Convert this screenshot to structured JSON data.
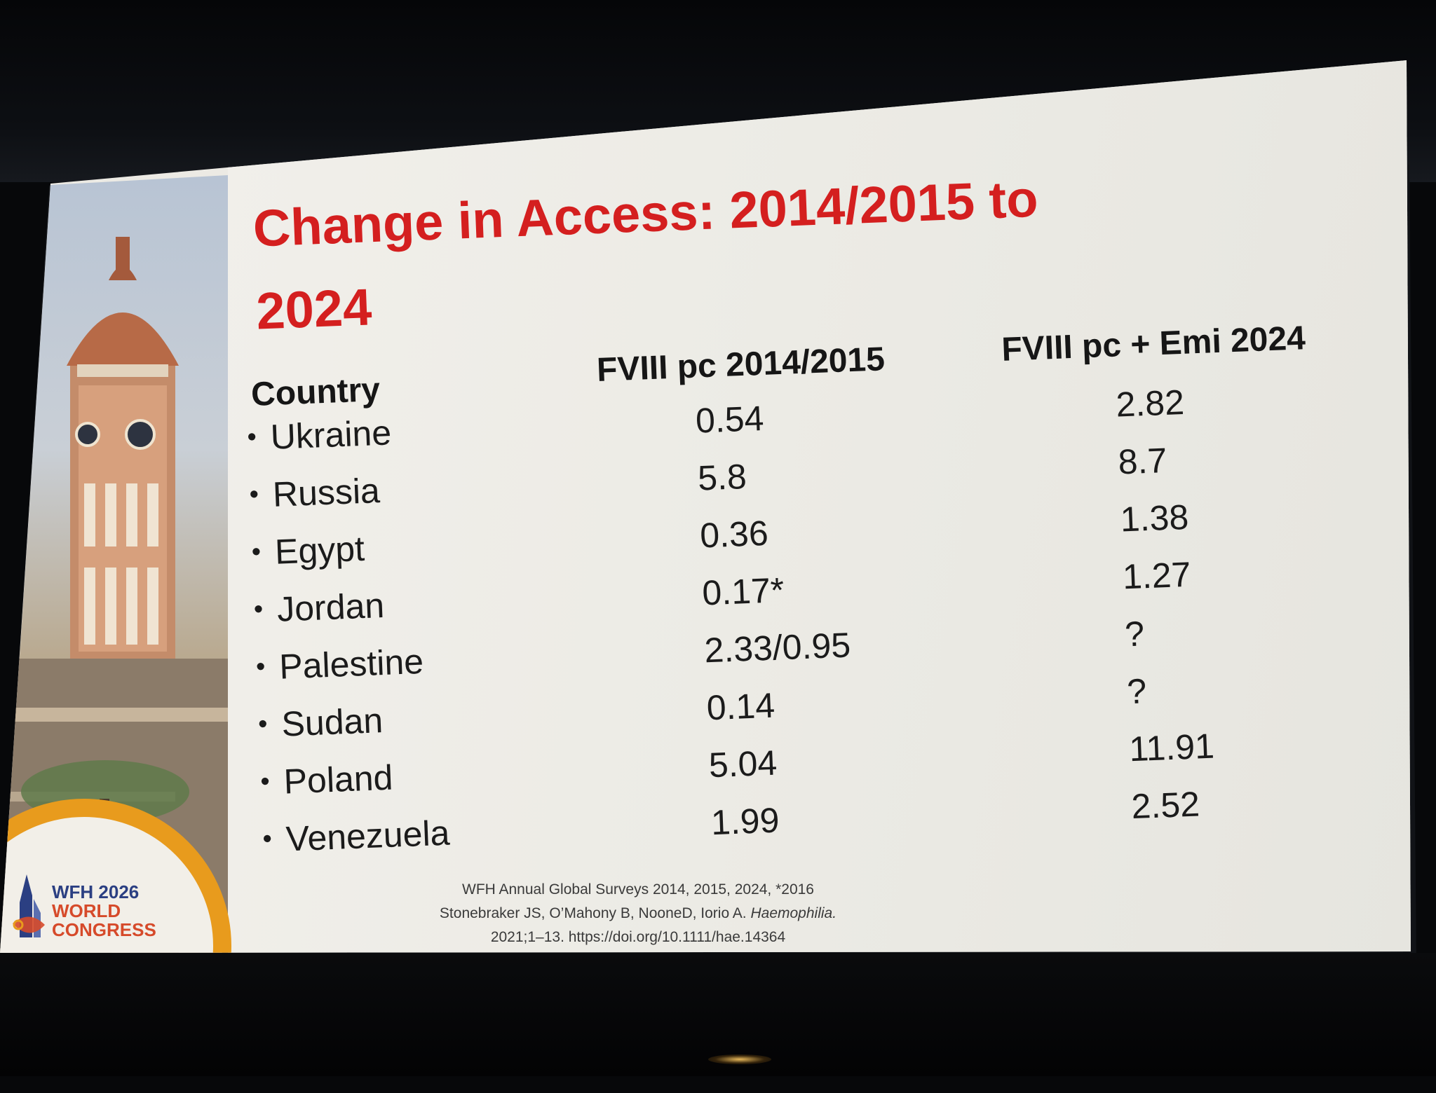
{
  "slide": {
    "title": "Change in Access: 2014/2015 to 2024",
    "headers": {
      "country": "Country",
      "fviii": "FVIII pc 2014/2015",
      "emi": "FVIII pc + Emi 2024"
    },
    "rows": [
      {
        "country": "Ukraine",
        "fviii": "0.54",
        "emi": "2.82"
      },
      {
        "country": "Russia",
        "fviii": "5.8",
        "emi": "8.7"
      },
      {
        "country": "Egypt",
        "fviii": "0.36",
        "emi": "1.38"
      },
      {
        "country": "Jordan",
        "fviii": "0.17*",
        "emi": "1.27"
      },
      {
        "country": "Palestine",
        "fviii": "2.33/0.95",
        "emi": "?"
      },
      {
        "country": "Sudan",
        "fviii": "0.14",
        "emi": "?"
      },
      {
        "country": "Poland",
        "fviii": "5.04",
        "emi": "11.91"
      },
      {
        "country": "Venezuela",
        "fviii": "1.99",
        "emi": "2.52"
      }
    ],
    "footnote": {
      "line1": "WFH Annual Global Surveys 2014, 2015, 2024, *2016",
      "line2_prefix": "Stonebraker JS, O’Mahony B, NooneD, Iorio A. ",
      "line2_journal": "Haemophilia.",
      "line3": "2021;1–13. https://doi.org/10.1111/hae.14364"
    }
  },
  "logo": {
    "line1": "WFH 2026",
    "line2": "WORLD",
    "line3": "CONGRESS"
  },
  "colors": {
    "title": "#d41f1f",
    "accent_arc": "#e89b1d",
    "logo_blue": "#2b3f82",
    "logo_red": "#d64a2a"
  }
}
